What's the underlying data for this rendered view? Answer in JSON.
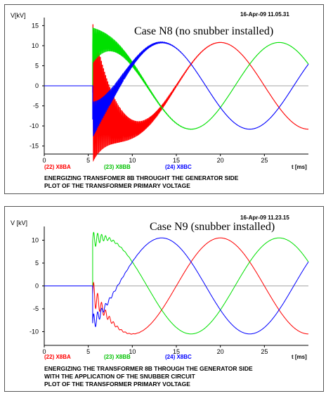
{
  "colors": {
    "red": "#ff0000",
    "green": "#00e000",
    "blue": "#0000ff",
    "axis": "#000000"
  },
  "chart_data": [
    {
      "type": "line",
      "title": "Case N8 (no snubber installed)",
      "timestamp": "16-Apr-09  11.05.31",
      "ylabel": "V[kV]",
      "xlabel": "t [ms]",
      "xlim": [
        0,
        30
      ],
      "ylim": [
        -17,
        17
      ],
      "x_ticks": [
        0,
        5,
        10,
        15,
        20,
        25
      ],
      "y_ticks": [
        15,
        10,
        5,
        0,
        -5,
        -10,
        -15
      ],
      "switch_time_ms": 5.5,
      "amplitude_kv": 10.8,
      "period_ms": 20,
      "series": [
        {
          "name": "(22)  X8BA",
          "color": "#ff0000",
          "phase_deg": 90,
          "transient_peak_kv": 16
        },
        {
          "name": "(23)  X8BB",
          "color": "#00e000",
          "phase_deg": -30,
          "transient_peak_kv": 5
        },
        {
          "name": "(24)  X8BC",
          "color": "#0000ff",
          "phase_deg": -150,
          "transient_peak_kv": 5
        }
      ],
      "caption": [
        "ENERGIZING TRANSFOMER 8B THROUGHT THE GENERATOR SIDE",
        "PLOT OF THE TRANSFORMER PRIMARY VOLTAGE"
      ]
    },
    {
      "type": "line",
      "title": "Case N9 (snubber installed)",
      "timestamp": "16-Apr-09  11.23.15",
      "ylabel": "V [kV]",
      "xlabel": "t [ms]",
      "xlim": [
        0,
        30
      ],
      "ylim": [
        -13,
        13
      ],
      "x_ticks": [
        0,
        5,
        10,
        15,
        20,
        25
      ],
      "y_ticks": [
        10,
        5,
        0,
        -5,
        -10
      ],
      "switch_time_ms": 5.5,
      "amplitude_kv": 10.5,
      "period_ms": 20,
      "series": [
        {
          "name": "(22)  X8BA",
          "color": "#ff0000",
          "phase_deg": 90,
          "transient_peak_kv": 3
        },
        {
          "name": "(23)  X8BB",
          "color": "#00e000",
          "phase_deg": -30,
          "transient_peak_kv": 2
        },
        {
          "name": "(24)  X8BC",
          "color": "#0000ff",
          "phase_deg": -150,
          "transient_peak_kv": 2
        }
      ],
      "caption": [
        "ENERGIZING THE TRANSFORMER 8B THROUGH THE GENERATOR SIDE",
        "WITH THE APPLICATION OF THE SNUBBER CIRCUIT",
        "PLOT OF THE TRANSFORMER PRIMARY VOLTAGE"
      ]
    }
  ]
}
